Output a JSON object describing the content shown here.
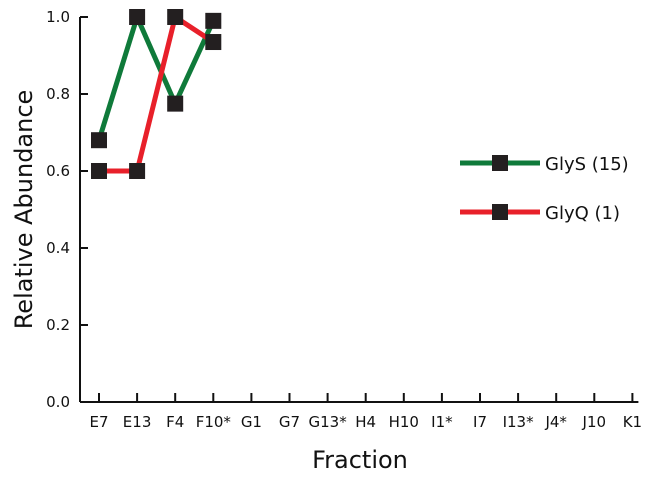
{
  "chart_data": {
    "type": "line",
    "xlabel": "Fraction",
    "ylabel": "Relative Abundance",
    "categories": [
      "E7",
      "E13",
      "F4",
      "F10*",
      "G1",
      "G7",
      "G13*",
      "H4",
      "H10",
      "I1*",
      "I7",
      "I13*",
      "J4*",
      "J10",
      "K1"
    ],
    "ylim": [
      0.0,
      1.0
    ],
    "yticks": [
      "0.0",
      "0.2",
      "0.4",
      "0.6",
      "0.8",
      "1.0"
    ],
    "grid": false,
    "legend_position": "right",
    "series": [
      {
        "name": "GlyS (15)",
        "color": "#0f7a3a",
        "points": [
          {
            "x": "E7",
            "y": 0.68
          },
          {
            "x": "E13",
            "y": 1.0
          },
          {
            "x": "F4",
            "y": 0.775
          },
          {
            "x": "F10*",
            "y": 0.99
          }
        ]
      },
      {
        "name": "GlyQ (1)",
        "color": "#e8202a",
        "points": [
          {
            "x": "E7",
            "y": 0.6
          },
          {
            "x": "E13",
            "y": 0.6
          },
          {
            "x": "F4",
            "y": 1.0
          },
          {
            "x": "F10*",
            "y": 0.935
          }
        ]
      }
    ]
  }
}
